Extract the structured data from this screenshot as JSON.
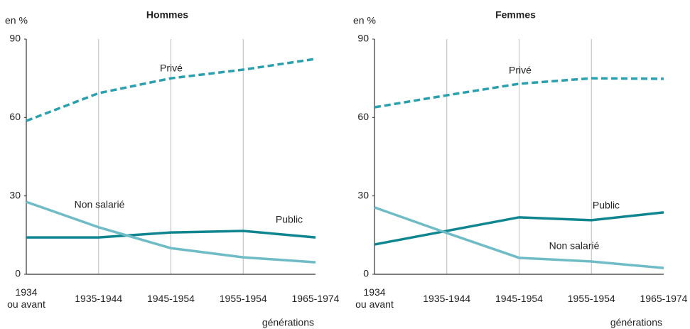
{
  "chart_data": [
    {
      "type": "line",
      "title": "Hommes",
      "y_label": "en %",
      "x_label": "générations",
      "categories": [
        "1934\nou avant",
        "1935-1944",
        "1945-1954",
        "1955-1954",
        "1965-1974"
      ],
      "ylim": [
        0,
        90
      ],
      "yticks": [
        0,
        30,
        60,
        90
      ],
      "series": [
        {
          "name": "Privé",
          "color": "#2aa0ae",
          "dashed": true,
          "values": [
            58.7,
            69.3,
            75,
            78.3,
            82.4
          ]
        },
        {
          "name": "Public",
          "color": "#0f8590",
          "dashed": false,
          "values": [
            14.1,
            14.1,
            16,
            16.6,
            14.1
          ]
        },
        {
          "name": "Non salarié",
          "color": "#6fbcc6",
          "dashed": false,
          "values": [
            27.7,
            18,
            10,
            6.5,
            4.6
          ]
        }
      ]
    },
    {
      "type": "line",
      "title": "Femmes",
      "y_label": "en %",
      "x_label": "générations",
      "categories": [
        "1934\nou avant",
        "1935-1944",
        "1945-1954",
        "1955-1954",
        "1965-1974"
      ],
      "ylim": [
        0,
        90
      ],
      "yticks": [
        0,
        30,
        60,
        90
      ],
      "series": [
        {
          "name": "Privé",
          "color": "#2aa0ae",
          "dashed": true,
          "values": [
            63.9,
            68.5,
            72.9,
            75,
            74.8
          ]
        },
        {
          "name": "Public",
          "color": "#0f8590",
          "dashed": false,
          "values": [
            11.4,
            16.6,
            21.8,
            20.7,
            23.7
          ]
        },
        {
          "name": "Non salarié",
          "color": "#6fbcc6",
          "dashed": false,
          "values": [
            25.6,
            15.8,
            6.3,
            4.9,
            2.4
          ]
        }
      ]
    }
  ]
}
